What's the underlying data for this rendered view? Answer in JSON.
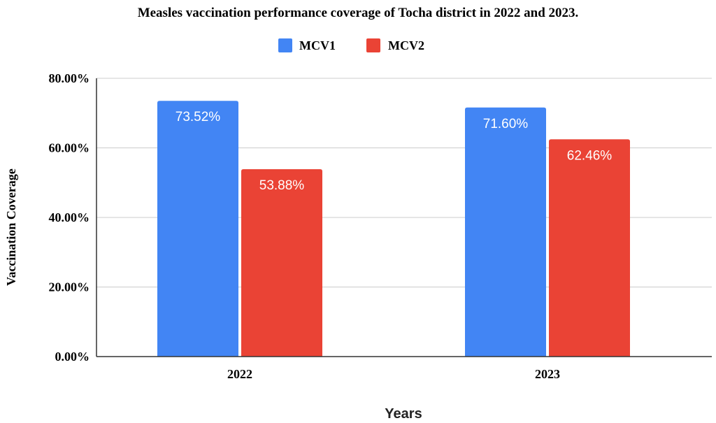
{
  "chart_data": {
    "type": "bar",
    "title": "Measles vaccination performance coverage of Tocha district in 2022 and 2023.",
    "xlabel": "Years",
    "ylabel": "Vaccination Coverage",
    "categories": [
      "2022",
      "2023"
    ],
    "series": [
      {
        "name": "MCV1",
        "color": "#4285f4",
        "values": [
          73.52,
          71.6
        ],
        "labels": [
          "73.52%",
          "71.60%"
        ]
      },
      {
        "name": "MCV2",
        "color": "#ea4335",
        "values": [
          53.88,
          62.46
        ],
        "labels": [
          "53.88%",
          "62.46%"
        ]
      }
    ],
    "ylim": [
      0,
      80
    ],
    "yticks": [
      0,
      20,
      40,
      60,
      80
    ],
    "ytick_labels": [
      "0.00%",
      "20.00%",
      "40.00%",
      "60.00%",
      "80.00%"
    ],
    "grid": true,
    "legend_position": "top"
  }
}
